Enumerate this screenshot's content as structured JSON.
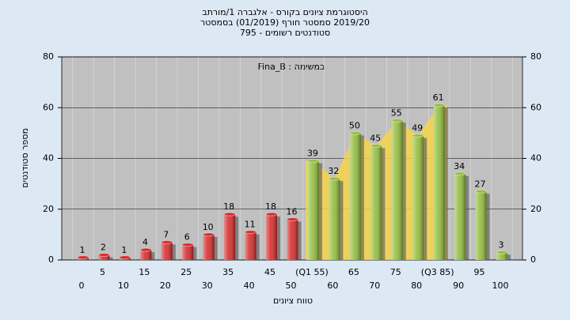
{
  "chart_data": {
    "type": "bar",
    "title": "היסטוגרמת ציונים בקורס - אלגברה 1/מורתב",
    "subtitle": "2019/20 סמסטר חורף (01/2019) בסמסטר",
    "subtitle2": "סטודנטים רשומים - 795",
    "annotation": "במשימה : Fina_B",
    "y_label": "מספר סטודנטים",
    "x_label": "טווח ציונים",
    "categories": [
      "0",
      "5",
      "10",
      "15",
      "20",
      "25",
      "30",
      "35",
      "40",
      "45",
      "50",
      "(Q1 55)",
      "60",
      "65",
      "70",
      "75",
      "80",
      "(Q3 85)",
      "90",
      "95",
      "100"
    ],
    "values": [
      1,
      2,
      1,
      4,
      7,
      6,
      10,
      18,
      11,
      18,
      16,
      39,
      32,
      50,
      45,
      55,
      49,
      61,
      34,
      27,
      3
    ],
    "colors": [
      "#d62c2c",
      "#d62c2c",
      "#d62c2c",
      "#d62c2c",
      "#d62c2c",
      "#d62c2c",
      "#d62c2c",
      "#d62c2c",
      "#d62c2c",
      "#d62c2c",
      "#d62c2c",
      "#94be3e",
      "#94be3e",
      "#94be3e",
      "#94be3e",
      "#94be3e",
      "#94be3e",
      "#94be3e",
      "#94be3e",
      "#94be3e",
      "#94be3e"
    ],
    "ylim": [
      0,
      80
    ],
    "yticks": [
      0,
      20,
      40,
      60,
      80
    ],
    "grid": true
  }
}
